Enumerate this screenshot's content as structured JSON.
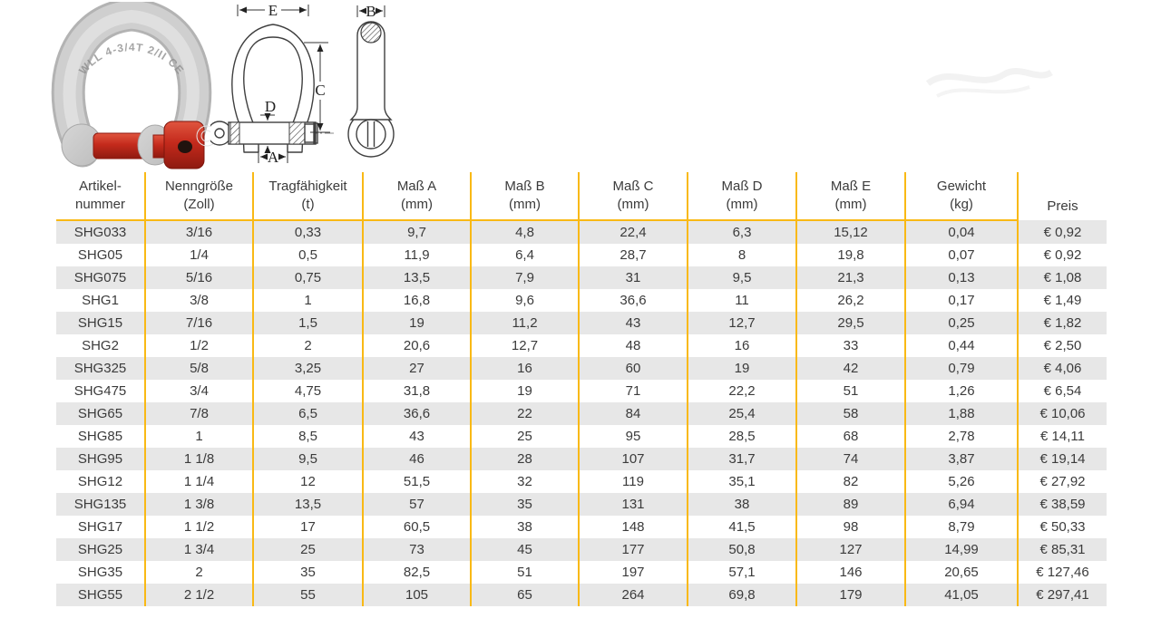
{
  "product_image": {
    "marking_text": "WLL 4-3/4T 2/II   CE",
    "body_color": "#cfcfcf",
    "pin_color": "#c42a1c"
  },
  "diagram": {
    "front_labels": {
      "e": "E",
      "c": "C",
      "d": "D",
      "a": "A"
    },
    "side_labels": {
      "b": "B"
    }
  },
  "table": {
    "accent_line_color": "#f9b915",
    "stripe_color": "#e7e7e7",
    "text_color": "#3b3b3b",
    "currency": "€",
    "headers": [
      {
        "line1": "Artikel-",
        "line2": "nummer"
      },
      {
        "line1": "Nenngröße",
        "line2": "(Zoll)"
      },
      {
        "line1": "Tragfähigkeit",
        "line2": "(t)"
      },
      {
        "line1": "Maß A",
        "line2": "(mm)"
      },
      {
        "line1": "Maß B",
        "line2": "(mm)"
      },
      {
        "line1": "Maß C",
        "line2": "(mm)"
      },
      {
        "line1": "Maß D",
        "line2": "(mm)"
      },
      {
        "line1": "Maß E",
        "line2": "(mm)"
      },
      {
        "line1": "Gewicht",
        "line2": "(kg)"
      },
      {
        "line1": "",
        "line2": "Preis"
      }
    ],
    "rows": [
      [
        "SHG033",
        "3/16",
        "0,33",
        "9,7",
        "4,8",
        "22,4",
        "6,3",
        "15,12",
        "0,04",
        "€ 0,92"
      ],
      [
        "SHG05",
        "1/4",
        "0,5",
        "11,9",
        "6,4",
        "28,7",
        "8",
        "19,8",
        "0,07",
        "€ 0,92"
      ],
      [
        "SHG075",
        "5/16",
        "0,75",
        "13,5",
        "7,9",
        "31",
        "9,5",
        "21,3",
        "0,13",
        "€ 1,08"
      ],
      [
        "SHG1",
        "3/8",
        "1",
        "16,8",
        "9,6",
        "36,6",
        "11",
        "26,2",
        "0,17",
        "€ 1,49"
      ],
      [
        "SHG15",
        "7/16",
        "1,5",
        "19",
        "11,2",
        "43",
        "12,7",
        "29,5",
        "0,25",
        "€ 1,82"
      ],
      [
        "SHG2",
        "1/2",
        "2",
        "20,6",
        "12,7",
        "48",
        "16",
        "33",
        "0,44",
        "€ 2,50"
      ],
      [
        "SHG325",
        "5/8",
        "3,25",
        "27",
        "16",
        "60",
        "19",
        "42",
        "0,79",
        "€ 4,06"
      ],
      [
        "SHG475",
        "3/4",
        "4,75",
        "31,8",
        "19",
        "71",
        "22,2",
        "51",
        "1,26",
        "€ 6,54"
      ],
      [
        "SHG65",
        "7/8",
        "6,5",
        "36,6",
        "22",
        "84",
        "25,4",
        "58",
        "1,88",
        "€ 10,06"
      ],
      [
        "SHG85",
        "1",
        "8,5",
        "43",
        "25",
        "95",
        "28,5",
        "68",
        "2,78",
        "€ 14,11"
      ],
      [
        "SHG95",
        "1 1/8",
        "9,5",
        "46",
        "28",
        "107",
        "31,7",
        "74",
        "3,87",
        "€ 19,14"
      ],
      [
        "SHG12",
        "1 1/4",
        "12",
        "51,5",
        "32",
        "119",
        "35,1",
        "82",
        "5,26",
        "€ 27,92"
      ],
      [
        "SHG135",
        "1 3/8",
        "13,5",
        "57",
        "35",
        "131",
        "38",
        "89",
        "6,94",
        "€ 38,59"
      ],
      [
        "SHG17",
        "1 1/2",
        "17",
        "60,5",
        "38",
        "148",
        "41,5",
        "98",
        "8,79",
        "€ 50,33"
      ],
      [
        "SHG25",
        "1 3/4",
        "25",
        "73",
        "45",
        "177",
        "50,8",
        "127",
        "14,99",
        "€ 85,31"
      ],
      [
        "SHG35",
        "2",
        "35",
        "82,5",
        "51",
        "197",
        "57,1",
        "146",
        "20,65",
        "€ 127,46"
      ],
      [
        "SHG55",
        "2 1/2",
        "55",
        "105",
        "65",
        "264",
        "69,8",
        "179",
        "41,05",
        "€ 297,41"
      ]
    ]
  }
}
